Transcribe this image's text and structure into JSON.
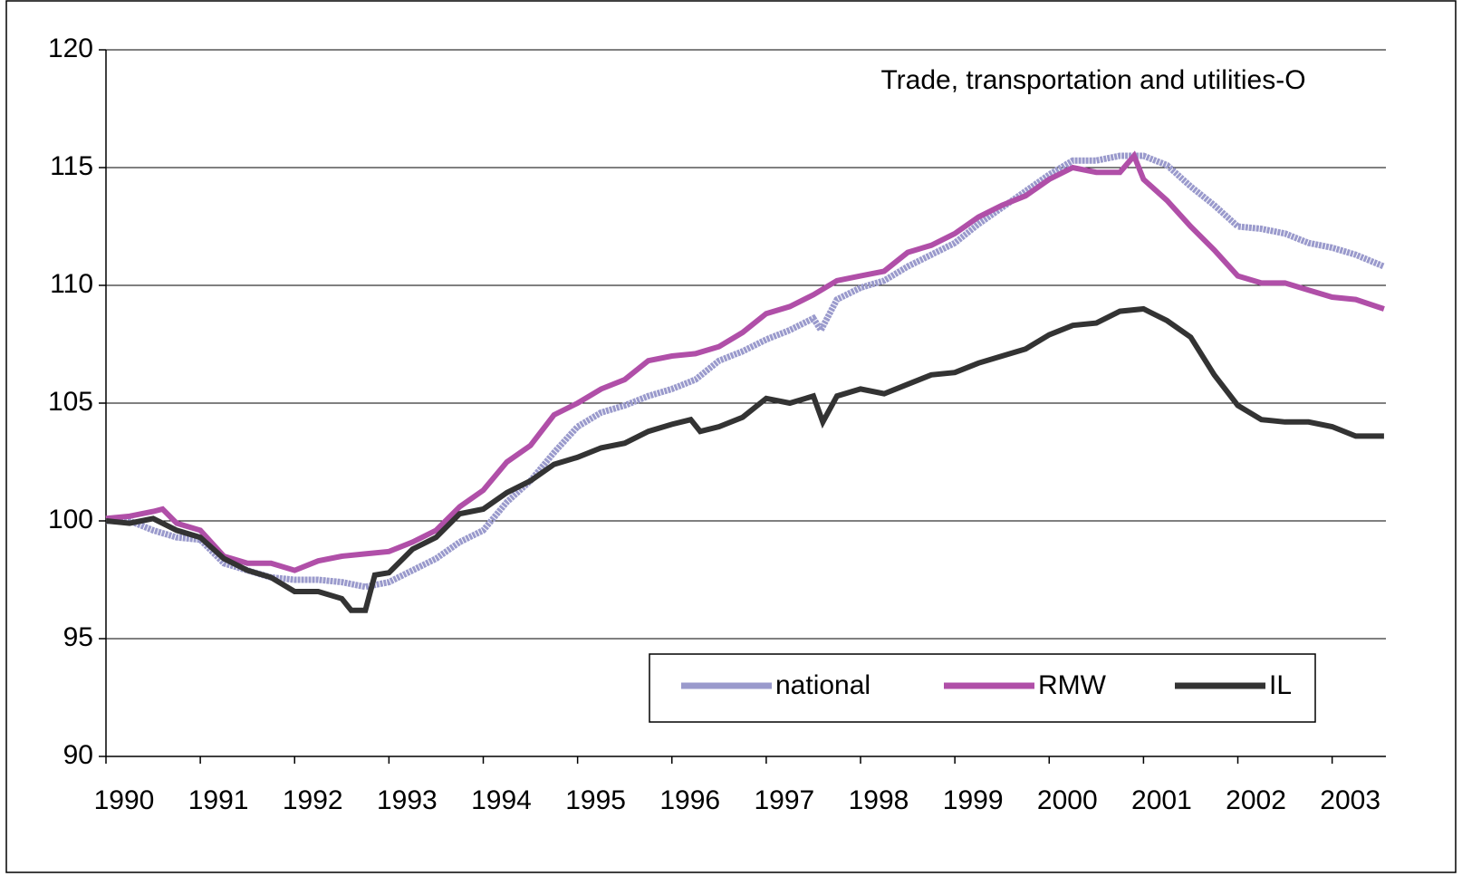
{
  "chart_data": {
    "type": "line",
    "title": "Trade, transportation and utilities-O",
    "xlim": [
      1990,
      2003.57
    ],
    "xticks": [
      1990,
      1991,
      1992,
      1993,
      1994,
      1995,
      1996,
      1997,
      1998,
      1999,
      2000,
      2001,
      2002,
      2003
    ],
    "ylim": [
      90,
      120
    ],
    "yticks": [
      90,
      95,
      100,
      105,
      110,
      115,
      120
    ],
    "grid": true,
    "legend": "bottom-right",
    "series": [
      {
        "name": "national",
        "color": "#9a9acc",
        "x": [
          1990,
          1990.25,
          1990.5,
          1990.75,
          1991,
          1991.25,
          1991.5,
          1991.75,
          1992,
          1992.25,
          1992.5,
          1992.75,
          1993,
          1993.25,
          1993.5,
          1993.75,
          1994,
          1994.25,
          1994.5,
          1994.75,
          1995,
          1995.25,
          1995.5,
          1995.75,
          1996,
          1996.25,
          1996.5,
          1996.75,
          1997,
          1997.25,
          1997.5,
          1997.58,
          1997.75,
          1998,
          1998.25,
          1998.5,
          1998.75,
          1999,
          1999.25,
          1999.5,
          1999.75,
          2000,
          2000.25,
          2000.5,
          2000.75,
          2001,
          2001.25,
          2001.5,
          2001.75,
          2002,
          2002.25,
          2002.5,
          2002.75,
          2003,
          2003.25,
          2003.55
        ],
        "values": [
          100,
          100,
          99.6,
          99.3,
          99.2,
          98.2,
          97.9,
          97.6,
          97.5,
          97.5,
          97.4,
          97.2,
          97.4,
          97.9,
          98.4,
          99.1,
          99.6,
          100.8,
          101.7,
          102.9,
          104.0,
          104.6,
          104.9,
          105.3,
          105.6,
          106.0,
          106.8,
          107.2,
          107.7,
          108.1,
          108.6,
          108.1,
          109.4,
          109.9,
          110.2,
          110.8,
          111.3,
          111.8,
          112.6,
          113.3,
          114.0,
          114.7,
          115.3,
          115.3,
          115.5,
          115.5,
          115.1,
          114.2,
          113.4,
          112.5,
          112.4,
          112.2,
          111.8,
          111.6,
          111.3,
          110.8
        ]
      },
      {
        "name": "RMW",
        "color": "#b04fa8",
        "x": [
          1990,
          1990.25,
          1990.5,
          1990.6,
          1990.75,
          1991,
          1991.25,
          1991.5,
          1991.75,
          1992,
          1992.25,
          1992.5,
          1992.75,
          1993,
          1993.25,
          1993.5,
          1993.75,
          1994,
          1994.25,
          1994.5,
          1994.75,
          1995,
          1995.25,
          1995.5,
          1995.75,
          1996,
          1996.25,
          1996.5,
          1996.75,
          1997,
          1997.25,
          1997.5,
          1997.75,
          1998,
          1998.25,
          1998.5,
          1998.75,
          1999,
          1999.25,
          1999.5,
          1999.75,
          2000,
          2000.25,
          2000.5,
          2000.75,
          2000.9,
          2001,
          2001.25,
          2001.5,
          2001.75,
          2002,
          2002.25,
          2002.5,
          2002.75,
          2003,
          2003.25,
          2003.55
        ],
        "values": [
          100.1,
          100.2,
          100.4,
          100.5,
          99.9,
          99.6,
          98.5,
          98.2,
          98.2,
          97.9,
          98.3,
          98.5,
          98.6,
          98.7,
          99.1,
          99.6,
          100.6,
          101.3,
          102.5,
          103.2,
          104.5,
          105.0,
          105.6,
          106.0,
          106.8,
          107.0,
          107.1,
          107.4,
          108.0,
          108.8,
          109.1,
          109.6,
          110.2,
          110.4,
          110.6,
          111.4,
          111.7,
          112.2,
          112.9,
          113.4,
          113.8,
          114.5,
          115.0,
          114.8,
          114.8,
          115.5,
          114.5,
          113.6,
          112.5,
          111.5,
          110.4,
          110.1,
          110.1,
          109.8,
          109.5,
          109.4,
          109.0
        ]
      },
      {
        "name": "IL",
        "color": "#333333",
        "x": [
          1990,
          1990.25,
          1990.5,
          1990.75,
          1991,
          1991.25,
          1991.5,
          1991.75,
          1992,
          1992.25,
          1992.5,
          1992.6,
          1992.75,
          1992.85,
          1993,
          1993.25,
          1993.5,
          1993.75,
          1994,
          1994.25,
          1994.5,
          1994.75,
          1995,
          1995.25,
          1995.5,
          1995.75,
          1996,
          1996.2,
          1996.3,
          1996.5,
          1996.75,
          1997,
          1997.25,
          1997.5,
          1997.6,
          1997.75,
          1998,
          1998.25,
          1998.5,
          1998.75,
          1999,
          1999.25,
          1999.5,
          1999.75,
          2000,
          2000.25,
          2000.5,
          2000.75,
          2001,
          2001.25,
          2001.5,
          2001.75,
          2002,
          2002.25,
          2002.5,
          2002.75,
          2003,
          2003.25,
          2003.55
        ],
        "values": [
          100,
          99.9,
          100.1,
          99.6,
          99.3,
          98.4,
          97.9,
          97.6,
          97.0,
          97.0,
          96.7,
          96.2,
          96.2,
          97.7,
          97.8,
          98.8,
          99.3,
          100.3,
          100.5,
          101.2,
          101.7,
          102.4,
          102.7,
          103.1,
          103.3,
          103.8,
          104.1,
          104.3,
          103.8,
          104.0,
          104.4,
          105.2,
          105.0,
          105.3,
          104.2,
          105.3,
          105.6,
          105.4,
          105.8,
          106.2,
          106.3,
          106.7,
          107.0,
          107.3,
          107.9,
          108.3,
          108.4,
          108.9,
          109.0,
          108.5,
          107.8,
          106.2,
          104.9,
          104.3,
          104.2,
          104.2,
          104.0,
          103.6,
          103.6
        ]
      }
    ]
  }
}
